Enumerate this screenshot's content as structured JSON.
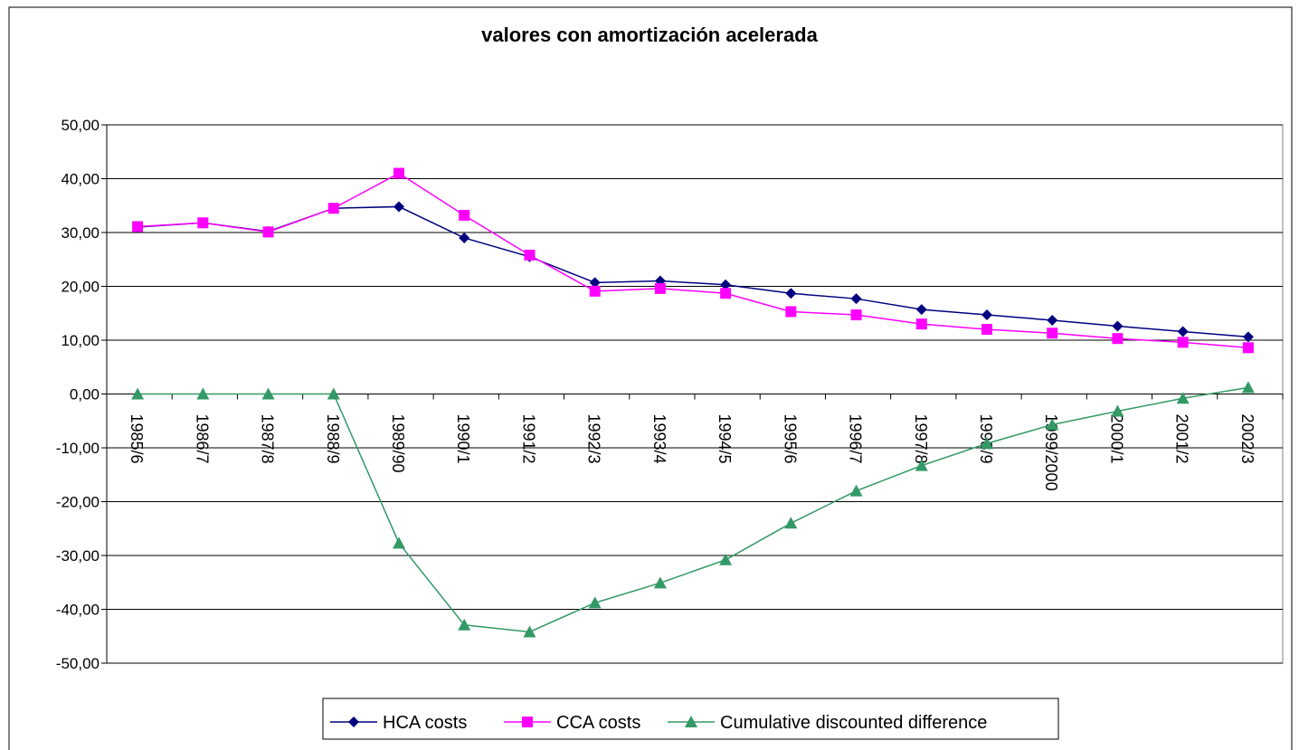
{
  "chart_data": {
    "type": "line",
    "title": "valores con amortización acelerada",
    "categories": [
      "1985/6",
      "1986/7",
      "1987/8",
      "1988/9",
      "1989/90",
      "1990/1",
      "1991/2",
      "1992/3",
      "1993/4",
      "1994/5",
      "1995/6",
      "1996/7",
      "1997/8",
      "1998/9",
      "1999/2000",
      "2000/1",
      "2001/2",
      "2002/3"
    ],
    "series": [
      {
        "name": "HCA costs",
        "color": "#000080",
        "marker": "diamond",
        "values": [
          31.0,
          31.8,
          30.2,
          34.5,
          34.8,
          29.0,
          25.5,
          20.7,
          21.0,
          20.3,
          18.7,
          17.7,
          15.7,
          14.7,
          13.7,
          12.6,
          11.6,
          10.6
        ]
      },
      {
        "name": "CCA costs",
        "color": "#ff00ff",
        "marker": "square",
        "values": [
          31.1,
          31.8,
          30.1,
          34.5,
          41.0,
          33.2,
          25.8,
          19.1,
          19.6,
          18.7,
          15.3,
          14.7,
          13.0,
          12.0,
          11.3,
          10.3,
          9.6,
          8.6
        ]
      },
      {
        "name": "Cumulative discounted difference",
        "color": "#339966",
        "marker": "triangle",
        "values": [
          0,
          0,
          0,
          0,
          -27.7,
          -42.9,
          -44.2,
          -38.8,
          -35.1,
          -30.8,
          -24.0,
          -18.0,
          -13.3,
          -9.2,
          -5.7,
          -3.2,
          -0.8,
          1.2
        ]
      }
    ],
    "ylim": [
      -50,
      50
    ],
    "yticks": [
      {
        "value": -50,
        "label": "-50,00"
      },
      {
        "value": -40,
        "label": "-40,00"
      },
      {
        "value": -30,
        "label": "-30,00"
      },
      {
        "value": -20,
        "label": "-20,00"
      },
      {
        "value": -10,
        "label": "-10,00"
      },
      {
        "value": 0,
        "label": "0,00"
      },
      {
        "value": 10,
        "label": "10,00"
      },
      {
        "value": 20,
        "label": "20,00"
      },
      {
        "value": 30,
        "label": "30,00"
      },
      {
        "value": 40,
        "label": "40,00"
      },
      {
        "value": 50,
        "label": "50,00"
      }
    ],
    "grid": true,
    "legend": "bottom"
  }
}
